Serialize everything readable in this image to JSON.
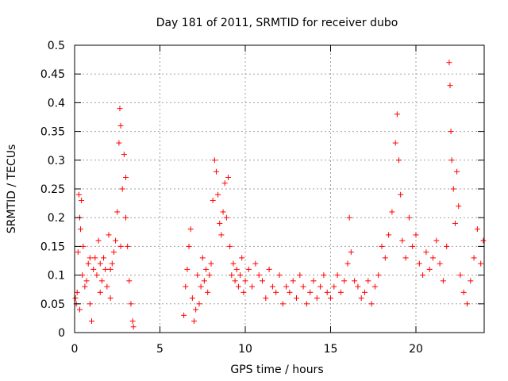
{
  "chart_data": {
    "type": "scatter",
    "title": "Day 181 of 2011, SRMTID for receiver dubo",
    "xlabel": "GPS time / hours",
    "ylabel": "SRMTID / TECUs",
    "xlim": [
      0,
      24
    ],
    "ylim": [
      0,
      0.5
    ],
    "x_ticks": [
      0,
      5,
      10,
      15,
      20
    ],
    "y_ticks": [
      0,
      0.05,
      0.1,
      0.15,
      0.2,
      0.25,
      0.3,
      0.35,
      0.4,
      0.45,
      0.5
    ],
    "x_tick_labels": [
      "0",
      "5",
      "10",
      "15",
      "20"
    ],
    "y_tick_labels": [
      "0",
      "0.05",
      "0.1",
      "0.15",
      "0.2",
      "0.25",
      "0.3",
      "0.35",
      "0.4",
      "0.45",
      "0.5"
    ],
    "grid": true,
    "marker": "+",
    "color": "#ff0000",
    "series": [
      {
        "values": [
          [
            0.05,
            0.06
          ],
          [
            0.1,
            0.05
          ],
          [
            0.15,
            0.07
          ],
          [
            0.2,
            0.14
          ],
          [
            0.25,
            0.24
          ],
          [
            0.3,
            0.2
          ],
          [
            0.35,
            0.18
          ],
          [
            0.4,
            0.23
          ],
          [
            0.45,
            0.1
          ],
          [
            0.5,
            0.15
          ],
          [
            0.6,
            0.08
          ],
          [
            0.7,
            0.09
          ],
          [
            0.8,
            0.12
          ],
          [
            0.9,
            0.05
          ],
          [
            1.0,
            0.02
          ],
          [
            1.1,
            0.11
          ],
          [
            1.2,
            0.13
          ],
          [
            1.3,
            0.1
          ],
          [
            1.4,
            0.16
          ],
          [
            1.5,
            0.07
          ],
          [
            1.6,
            0.09
          ],
          [
            1.7,
            0.13
          ],
          [
            1.8,
            0.11
          ],
          [
            1.9,
            0.08
          ],
          [
            2.0,
            0.17
          ],
          [
            2.1,
            0.06
          ],
          [
            2.2,
            0.12
          ],
          [
            2.3,
            0.14
          ],
          [
            2.4,
            0.16
          ],
          [
            2.5,
            0.21
          ],
          [
            2.6,
            0.33
          ],
          [
            2.65,
            0.39
          ],
          [
            2.7,
            0.36
          ],
          [
            2.8,
            0.25
          ],
          [
            2.9,
            0.31
          ],
          [
            3.0,
            0.2
          ],
          [
            3.1,
            0.15
          ],
          [
            3.2,
            0.09
          ],
          [
            3.3,
            0.05
          ],
          [
            3.4,
            0.02
          ],
          [
            3.45,
            0.01
          ],
          [
            0.3,
            0.04
          ],
          [
            0.9,
            0.13
          ],
          [
            1.5,
            0.12
          ],
          [
            2.1,
            0.11
          ],
          [
            2.7,
            0.15
          ],
          [
            3.0,
            0.27
          ],
          [
            6.4,
            0.03
          ],
          [
            6.5,
            0.08
          ],
          [
            6.6,
            0.11
          ],
          [
            6.7,
            0.15
          ],
          [
            6.8,
            0.18
          ],
          [
            6.9,
            0.06
          ],
          [
            7.0,
            0.02
          ],
          [
            7.1,
            0.04
          ],
          [
            7.2,
            0.1
          ],
          [
            7.3,
            0.05
          ],
          [
            7.4,
            0.08
          ],
          [
            7.5,
            0.13
          ],
          [
            7.6,
            0.09
          ],
          [
            7.7,
            0.11
          ],
          [
            7.8,
            0.07
          ],
          [
            7.9,
            0.1
          ],
          [
            8.0,
            0.12
          ],
          [
            8.1,
            0.23
          ],
          [
            8.2,
            0.3
          ],
          [
            8.3,
            0.28
          ],
          [
            8.4,
            0.24
          ],
          [
            8.5,
            0.19
          ],
          [
            8.6,
            0.17
          ],
          [
            8.7,
            0.21
          ],
          [
            8.8,
            0.26
          ],
          [
            8.9,
            0.2
          ],
          [
            9.0,
            0.27
          ],
          [
            9.1,
            0.15
          ],
          [
            9.2,
            0.1
          ],
          [
            9.3,
            0.12
          ],
          [
            9.4,
            0.09
          ],
          [
            9.5,
            0.11
          ],
          [
            9.6,
            0.08
          ],
          [
            9.7,
            0.1
          ],
          [
            9.8,
            0.13
          ],
          [
            9.9,
            0.07
          ],
          [
            10.0,
            0.09
          ],
          [
            10.2,
            0.11
          ],
          [
            10.4,
            0.08
          ],
          [
            10.6,
            0.12
          ],
          [
            10.8,
            0.1
          ],
          [
            11.0,
            0.09
          ],
          [
            11.2,
            0.06
          ],
          [
            11.4,
            0.11
          ],
          [
            11.6,
            0.08
          ],
          [
            11.8,
            0.07
          ],
          [
            12.0,
            0.1
          ],
          [
            12.2,
            0.05
          ],
          [
            12.4,
            0.08
          ],
          [
            12.6,
            0.07
          ],
          [
            12.8,
            0.09
          ],
          [
            13.0,
            0.06
          ],
          [
            13.2,
            0.1
          ],
          [
            13.4,
            0.08
          ],
          [
            13.6,
            0.05
          ],
          [
            13.8,
            0.07
          ],
          [
            14.0,
            0.09
          ],
          [
            14.2,
            0.06
          ],
          [
            14.4,
            0.08
          ],
          [
            14.6,
            0.1
          ],
          [
            14.8,
            0.07
          ],
          [
            15.0,
            0.06
          ],
          [
            15.2,
            0.08
          ],
          [
            15.4,
            0.1
          ],
          [
            15.6,
            0.07
          ],
          [
            15.8,
            0.09
          ],
          [
            16.0,
            0.12
          ],
          [
            16.1,
            0.2
          ],
          [
            16.2,
            0.14
          ],
          [
            16.4,
            0.09
          ],
          [
            16.6,
            0.08
          ],
          [
            16.8,
            0.06
          ],
          [
            17.0,
            0.07
          ],
          [
            17.2,
            0.09
          ],
          [
            17.4,
            0.05
          ],
          [
            17.6,
            0.08
          ],
          [
            17.8,
            0.1
          ],
          [
            18.0,
            0.15
          ],
          [
            18.2,
            0.13
          ],
          [
            18.4,
            0.17
          ],
          [
            18.6,
            0.21
          ],
          [
            18.8,
            0.33
          ],
          [
            18.9,
            0.38
          ],
          [
            19.0,
            0.3
          ],
          [
            19.1,
            0.24
          ],
          [
            19.2,
            0.16
          ],
          [
            19.4,
            0.13
          ],
          [
            19.6,
            0.2
          ],
          [
            19.8,
            0.15
          ],
          [
            20.0,
            0.17
          ],
          [
            20.2,
            0.12
          ],
          [
            20.4,
            0.1
          ],
          [
            20.6,
            0.14
          ],
          [
            20.8,
            0.11
          ],
          [
            21.0,
            0.13
          ],
          [
            21.2,
            0.16
          ],
          [
            21.4,
            0.12
          ],
          [
            21.6,
            0.09
          ],
          [
            21.8,
            0.15
          ],
          [
            21.95,
            0.47
          ],
          [
            22.0,
            0.43
          ],
          [
            22.05,
            0.35
          ],
          [
            22.1,
            0.3
          ],
          [
            22.2,
            0.25
          ],
          [
            22.3,
            0.19
          ],
          [
            22.4,
            0.28
          ],
          [
            22.5,
            0.22
          ],
          [
            22.6,
            0.1
          ],
          [
            22.8,
            0.07
          ],
          [
            23.0,
            0.05
          ],
          [
            23.2,
            0.09
          ],
          [
            23.4,
            0.13
          ],
          [
            23.6,
            0.18
          ],
          [
            23.8,
            0.12
          ],
          [
            23.95,
            0.16
          ]
        ]
      }
    ]
  }
}
